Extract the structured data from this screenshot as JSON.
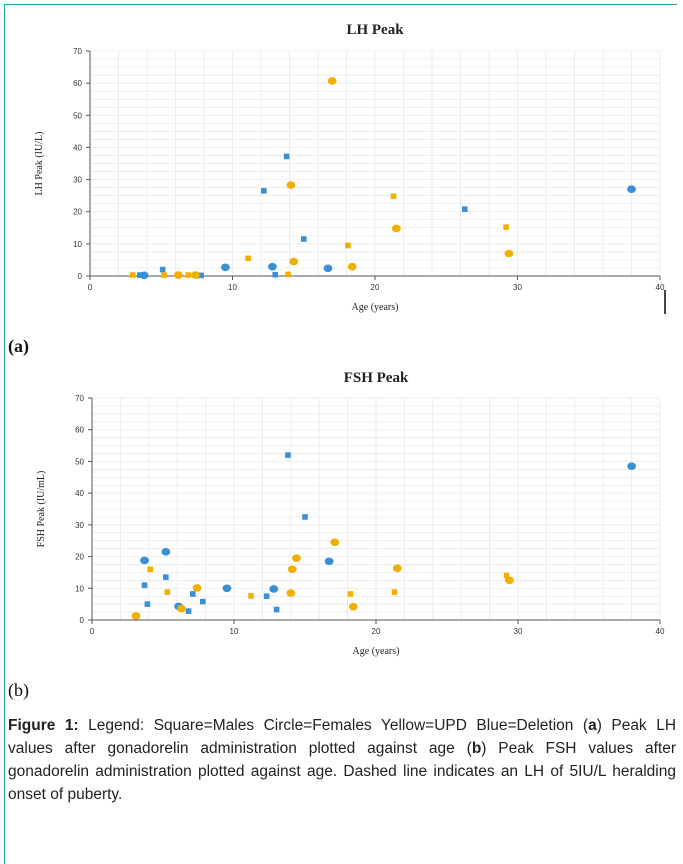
{
  "chart_data": [
    {
      "type": "scatter",
      "title": "LH Peak",
      "xlabel": "Age (years)",
      "ylabel": "LH Peak (IU/L)",
      "xlim": [
        0,
        40
      ],
      "ylim": [
        0,
        70
      ],
      "xticks": [
        0,
        10,
        20,
        30,
        40
      ],
      "yticks": [
        0,
        10,
        20,
        30,
        40,
        50,
        60,
        70
      ],
      "grid": true,
      "legend": "none",
      "panel_label": "(a)",
      "series": [
        {
          "color": "#3b8fd4",
          "marker": "square",
          "points": [
            [
              3.5,
              0.3
            ],
            [
              5.1,
              2.0
            ],
            [
              7.8,
              0.2
            ],
            [
              12.2,
              26.5
            ],
            [
              13.0,
              0.4
            ],
            [
              13.8,
              37.2
            ],
            [
              15.0,
              11.5
            ],
            [
              26.3,
              20.8
            ]
          ]
        },
        {
          "color": "#3b8fd4",
          "marker": "circle",
          "points": [
            [
              3.8,
              0.2
            ],
            [
              9.5,
              2.7
            ],
            [
              12.8,
              2.9
            ],
            [
              16.7,
              2.4
            ],
            [
              38.0,
              27.0
            ]
          ]
        },
        {
          "color": "#f0b000",
          "marker": "square",
          "points": [
            [
              3.0,
              0.3
            ],
            [
              5.2,
              0.3
            ],
            [
              6.9,
              0.3
            ],
            [
              11.1,
              5.5
            ],
            [
              13.9,
              0.5
            ],
            [
              18.1,
              9.5
            ],
            [
              21.3,
              24.8
            ],
            [
              29.2,
              15.2
            ]
          ]
        },
        {
          "color": "#f0b000",
          "marker": "circle",
          "points": [
            [
              6.2,
              0.3
            ],
            [
              7.4,
              0.3
            ],
            [
              14.1,
              28.3
            ],
            [
              14.3,
              4.5
            ],
            [
              17.0,
              60.7
            ],
            [
              18.4,
              2.9
            ],
            [
              21.5,
              14.8
            ],
            [
              29.4,
              7.0
            ]
          ]
        }
      ]
    },
    {
      "type": "scatter",
      "title": "FSH Peak",
      "xlabel": "Age (years)",
      "ylabel": "FSH Peak (IU/mL)",
      "xlim": [
        0,
        40
      ],
      "ylim": [
        0,
        70
      ],
      "xticks": [
        0,
        10,
        20,
        30,
        40
      ],
      "yticks": [
        0,
        10,
        20,
        30,
        40,
        50,
        60,
        70
      ],
      "grid": true,
      "legend": "none",
      "panel_label": "(b)",
      "series": [
        {
          "color": "#3b8fd4",
          "marker": "square",
          "points": [
            [
              3.7,
              11.0
            ],
            [
              3.9,
              5.0
            ],
            [
              5.2,
              13.5
            ],
            [
              6.8,
              2.8
            ],
            [
              7.1,
              8.2
            ],
            [
              7.8,
              5.8
            ],
            [
              12.3,
              7.5
            ],
            [
              13.0,
              3.3
            ],
            [
              13.8,
              52.0
            ],
            [
              15.0,
              32.5
            ]
          ]
        },
        {
          "color": "#3b8fd4",
          "marker": "circle",
          "points": [
            [
              3.7,
              18.8
            ],
            [
              5.2,
              21.5
            ],
            [
              6.1,
              4.3
            ],
            [
              9.5,
              10.0
            ],
            [
              12.8,
              9.8
            ],
            [
              16.7,
              18.5
            ],
            [
              38.0,
              48.5
            ]
          ]
        },
        {
          "color": "#f0b000",
          "marker": "square",
          "points": [
            [
              4.1,
              16.0
            ],
            [
              5.3,
              8.8
            ],
            [
              11.2,
              7.6
            ],
            [
              18.2,
              8.2
            ],
            [
              21.3,
              8.8
            ],
            [
              29.2,
              14.0
            ]
          ]
        },
        {
          "color": "#f0b000",
          "marker": "circle",
          "points": [
            [
              3.1,
              1.3
            ],
            [
              6.3,
              3.6
            ],
            [
              7.4,
              10.1
            ],
            [
              14.0,
              8.5
            ],
            [
              14.1,
              16.0
            ],
            [
              14.4,
              19.5
            ],
            [
              17.1,
              24.5
            ],
            [
              18.4,
              4.2
            ],
            [
              21.5,
              16.3
            ],
            [
              29.4,
              12.5
            ]
          ]
        }
      ]
    }
  ],
  "caption": {
    "fig_label": "Figure 1:",
    "part1": " Legend: Square=Males Circle=Females Yellow=UPD Blue=Deletion (",
    "a": "a",
    "part2": ") Peak LH values after gonadorelin administration plotted against age (",
    "b": "b",
    "part3": ") Peak FSH values after gonadorelin administration plotted against age. Dashed line indicates an LH of 5IU/L heralding onset of puberty."
  }
}
